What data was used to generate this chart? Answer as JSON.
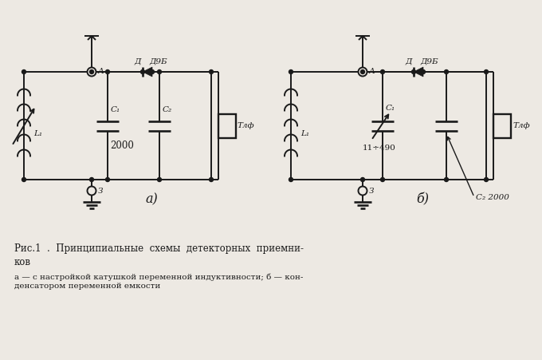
{
  "fig_width": 6.8,
  "fig_height": 4.51,
  "dpi": 100,
  "bg_color": "#ede9e3",
  "line_color": "#1a1a1a",
  "title_line1": "Рис.1  .  Принципиальные  схемы  детекторных  приемни-",
  "title_line2": "ков",
  "subtitle": "а — с настройкой катушкой переменной индуктивности; б — кон-\nденсатором переменной емкости",
  "label_a": "а)",
  "label_b": "б)",
  "label_A1": "А",
  "label_Z1": "З",
  "label_A2": "А",
  "label_Z2": "З",
  "label_D": "Д",
  "label_D9B": "Д9Б",
  "label_L1a": "L₁",
  "label_L1b": "L₁",
  "label_C1a": "C₁",
  "label_C1b": "C₁",
  "label_C2a": "C₂",
  "label_C2b": "C₂",
  "label_2000a": "2000",
  "label_490": "11÷490",
  "label_2000b": "2000",
  "label_Tlf1": "Тлф",
  "label_Tlf2": "Тлф",
  "font_size_labels": 7.5,
  "font_size_caption": 8.5,
  "font_size_subtitle": 7.5
}
